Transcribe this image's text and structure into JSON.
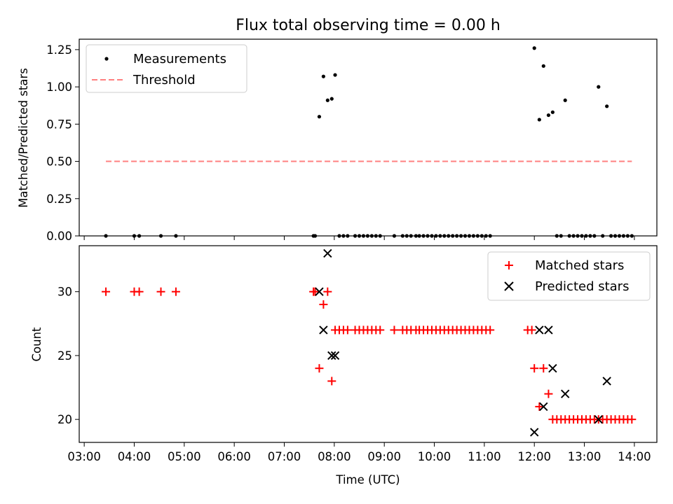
{
  "title": "Flux total observing time = 0.00 h",
  "xlabel": "Time (UTC)",
  "xticks": [
    "03:00",
    "04:00",
    "05:00",
    "06:00",
    "07:00",
    "08:00",
    "09:00",
    "10:00",
    "11:00",
    "12:00",
    "13:00",
    "14:00"
  ],
  "colors": {
    "measurement": "#000000",
    "threshold": "#ff8080",
    "matched": "#ff0000",
    "predicted": "#000000"
  },
  "chart_data": [
    {
      "type": "scatter",
      "ylabel": "Matched/Predicted stars",
      "xlim_hours": [
        2.9,
        14.45
      ],
      "ylim": [
        0,
        1.32
      ],
      "yticks": [
        "0.00",
        "0.25",
        "0.50",
        "0.75",
        "1.00",
        "1.25"
      ],
      "legend_position": "upper-left",
      "series": [
        {
          "name": "Measurements",
          "marker": "dot",
          "x": [
            "03:26",
            "04:00",
            "04:06",
            "04:32",
            "04:50",
            "07:35",
            "07:37",
            "07:42",
            "07:47",
            "07:52",
            "07:57",
            "08:01",
            "08:06",
            "08:11",
            "08:16",
            "08:25",
            "08:30",
            "08:35",
            "08:40",
            "08:45",
            "08:50",
            "08:55",
            "09:12",
            "09:22",
            "09:27",
            "09:32",
            "09:38",
            "09:42",
            "09:47",
            "09:52",
            "09:57",
            "10:02",
            "10:07",
            "10:12",
            "10:17",
            "10:22",
            "10:27",
            "10:32",
            "10:37",
            "10:42",
            "10:47",
            "10:52",
            "10:57",
            "11:02",
            "11:07",
            "12:00",
            "12:06",
            "12:11",
            "12:17",
            "12:22",
            "12:27",
            "12:32",
            "12:37",
            "12:42",
            "12:47",
            "12:52",
            "12:57",
            "13:02",
            "13:07",
            "13:12",
            "13:17",
            "13:22",
            "13:27",
            "13:32",
            "13:37",
            "13:42",
            "13:47",
            "13:52",
            "13:57"
          ],
          "y": [
            0,
            0,
            0,
            0,
            0,
            0,
            0,
            0.8,
            1.07,
            0.91,
            0.92,
            1.08,
            0,
            0,
            0,
            0,
            0,
            0,
            0,
            0,
            0,
            0,
            0,
            0,
            0,
            0,
            0,
            0,
            0,
            0,
            0,
            0,
            0,
            0,
            0,
            0,
            0,
            0,
            0,
            0,
            0,
            0,
            0,
            0,
            0,
            1.26,
            0.78,
            1.14,
            0.81,
            0.83,
            0,
            0,
            0.91,
            0,
            0,
            0,
            0,
            0,
            0,
            0,
            1.0,
            0,
            0.87,
            0,
            0,
            0,
            0,
            0,
            0
          ]
        },
        {
          "name": "Threshold",
          "style": "dashed",
          "x": [
            "03:26",
            "13:57"
          ],
          "y": [
            0.5,
            0.5
          ]
        }
      ]
    },
    {
      "type": "scatter",
      "ylabel": "Count",
      "xlim_hours": [
        2.9,
        14.45
      ],
      "ylim": [
        18.2,
        33.6
      ],
      "yticks": [
        "20",
        "25",
        "30"
      ],
      "legend_position": "upper-right",
      "series": [
        {
          "name": "Matched stars",
          "marker": "plus",
          "x": [
            "03:26",
            "04:00",
            "04:06",
            "04:32",
            "04:50",
            "07:35",
            "07:37",
            "07:42",
            "07:47",
            "07:52",
            "07:57",
            "08:01",
            "08:06",
            "08:11",
            "08:16",
            "08:25",
            "08:30",
            "08:35",
            "08:40",
            "08:45",
            "08:50",
            "08:55",
            "09:12",
            "09:22",
            "09:27",
            "09:32",
            "09:38",
            "09:42",
            "09:47",
            "09:52",
            "09:57",
            "10:02",
            "10:07",
            "10:12",
            "10:17",
            "10:22",
            "10:27",
            "10:32",
            "10:37",
            "10:42",
            "10:47",
            "10:52",
            "10:57",
            "11:02",
            "11:07",
            "11:52",
            "11:57",
            "12:00",
            "12:06",
            "12:11",
            "12:17",
            "12:22",
            "12:27",
            "12:32",
            "12:37",
            "12:42",
            "12:47",
            "12:52",
            "12:57",
            "13:02",
            "13:07",
            "13:12",
            "13:17",
            "13:22",
            "13:27",
            "13:32",
            "13:37",
            "13:42",
            "13:47",
            "13:52",
            "13:57"
          ],
          "y": [
            30,
            30,
            30,
            30,
            30,
            30,
            30,
            24,
            29,
            30,
            23,
            27,
            27,
            27,
            27,
            27,
            27,
            27,
            27,
            27,
            27,
            27,
            27,
            27,
            27,
            27,
            27,
            27,
            27,
            27,
            27,
            27,
            27,
            27,
            27,
            27,
            27,
            27,
            27,
            27,
            27,
            27,
            27,
            27,
            27,
            27,
            27,
            24,
            21,
            24,
            22,
            20,
            20,
            20,
            20,
            20,
            20,
            20,
            20,
            20,
            20,
            20,
            20,
            20,
            20,
            20,
            20,
            20,
            20,
            20,
            20
          ]
        },
        {
          "name": "Predicted stars",
          "marker": "x",
          "x": [
            "07:42",
            "07:47",
            "07:52",
            "07:57",
            "08:01",
            "12:00",
            "12:06",
            "12:11",
            "12:17",
            "12:22",
            "12:37",
            "13:17",
            "13:27"
          ],
          "y": [
            30,
            27,
            33,
            25,
            25,
            19,
            27,
            21,
            27,
            24,
            22,
            20,
            23
          ]
        }
      ]
    }
  ]
}
